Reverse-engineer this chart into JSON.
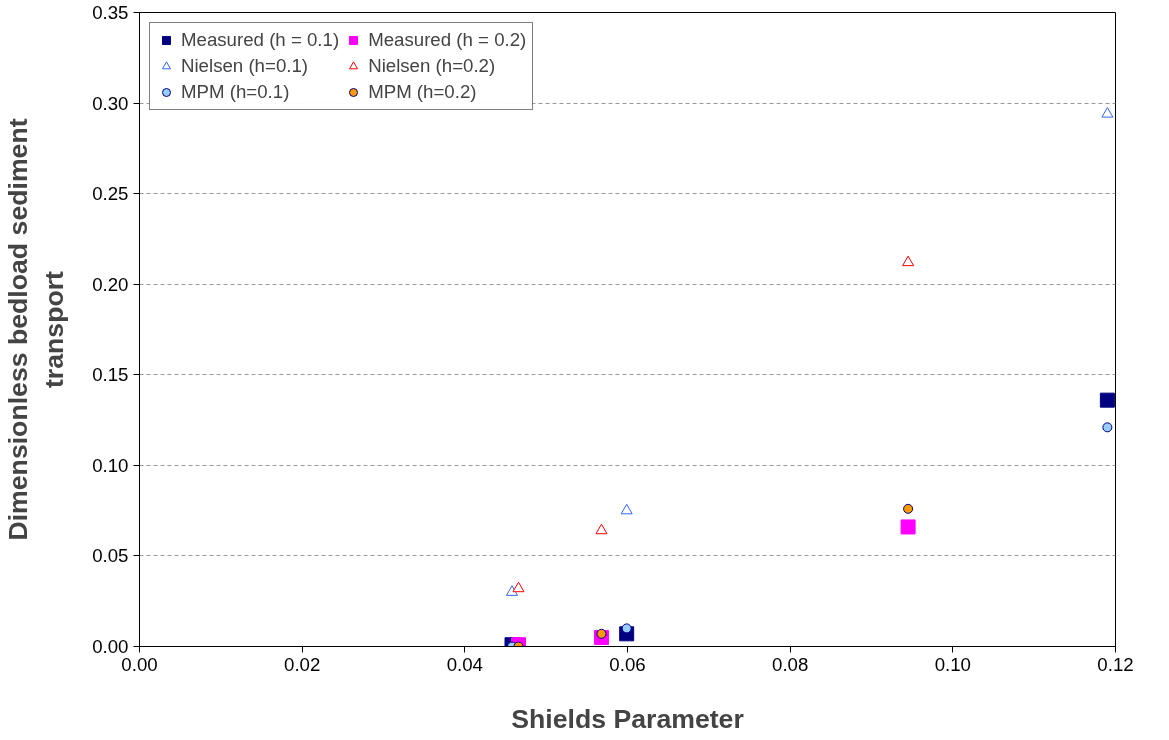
{
  "chart_data": {
    "type": "scatter",
    "xlabel": "Shields Parameter",
    "ylabel": "Dimensionless bedload sediment transport",
    "xlim": [
      0,
      0.12
    ],
    "xticks": [
      {
        "value": 0,
        "label": "0.00"
      },
      {
        "value": 0.02,
        "label": "0.02"
      },
      {
        "value": 0.04,
        "label": "0.04"
      },
      {
        "value": 0.06,
        "label": "0.06"
      },
      {
        "value": 0.08,
        "label": "0.08"
      },
      {
        "value": 0.1,
        "label": "0.10"
      },
      {
        "value": 0.12,
        "label": "0.12"
      }
    ],
    "ylim": [
      0,
      0.35
    ],
    "yticks": [
      {
        "value": 0,
        "label": "0.00"
      },
      {
        "value": 0.05,
        "label": "0.05"
      },
      {
        "value": 0.1,
        "label": "0.10"
      },
      {
        "value": 0.15,
        "label": "0.15"
      },
      {
        "value": 0.2,
        "label": "0.20"
      },
      {
        "value": 0.25,
        "label": "0.25"
      },
      {
        "value": 0.3,
        "label": "0.30"
      },
      {
        "value": 0.35,
        "label": "0.35"
      }
    ],
    "grid": "y",
    "legend": "top left",
    "series": [
      {
        "name": "Measured (h = 0.1)",
        "color": "#000080",
        "marker": "square",
        "x": [
          0.0458,
          0.0599,
          0.119
        ],
        "values": [
          0.001,
          0.007,
          0.136
        ]
      },
      {
        "name": "Measured (h = 0.2)",
        "color": "#ff00ff",
        "marker": "square",
        "x": [
          0.0466,
          0.0568,
          0.0945
        ],
        "values": [
          0.001,
          0.005,
          0.066
        ]
      },
      {
        "name": "Nielsen (h=0.1)",
        "color": "#3366ff",
        "marker": "triangle",
        "x": [
          0.0458,
          0.0599,
          0.119
        ],
        "values": [
          0.03,
          0.075,
          0.294
        ]
      },
      {
        "name": "Nielsen (h=0.2)",
        "color": "#ff0000",
        "marker": "triangle",
        "x": [
          0.0466,
          0.0568,
          0.0945
        ],
        "values": [
          0.032,
          0.064,
          0.212
        ]
      },
      {
        "name": "MPM (h=0.1)",
        "color": "#99ccff",
        "marker": "circle",
        "x": [
          0.0458,
          0.0599,
          0.119
        ],
        "values": [
          0.0,
          0.01,
          0.121
        ]
      },
      {
        "name": "MPM (h=0.2)",
        "color": "#ff9900",
        "marker": "circle",
        "x": [
          0.0466,
          0.0568,
          0.0945
        ],
        "values": [
          0.0,
          0.007,
          0.076
        ]
      }
    ]
  }
}
